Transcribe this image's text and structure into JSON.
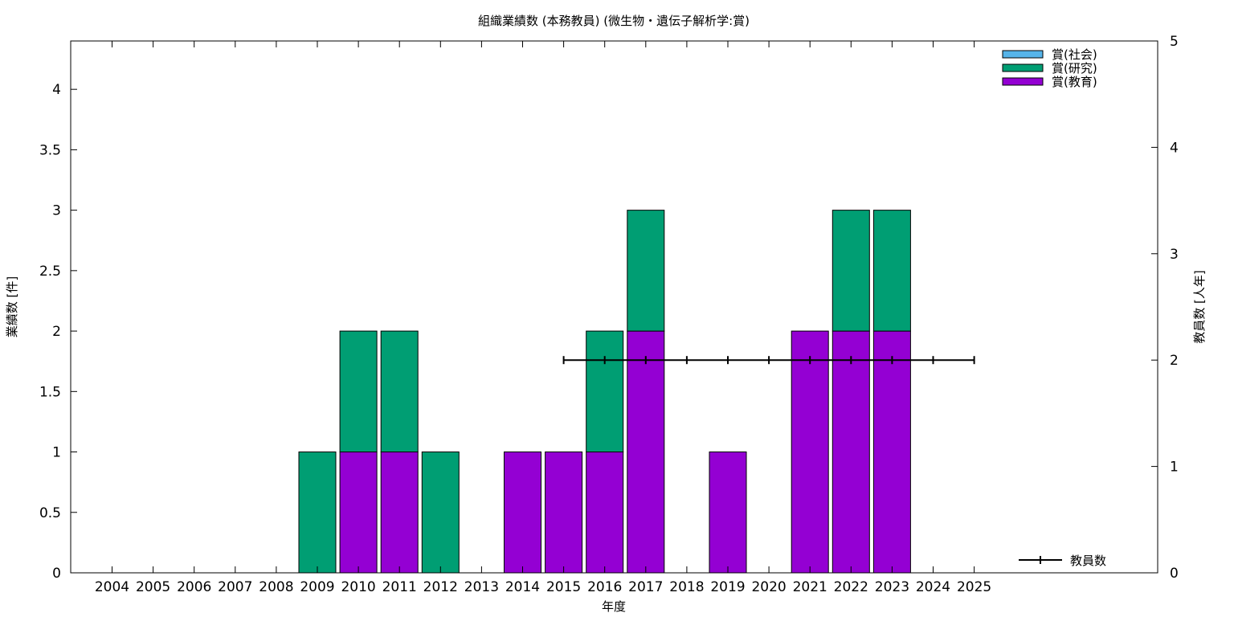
{
  "chart_data": {
    "type": "bar",
    "title": "組織業績数 (本務教員) (微生物・遺伝子解析学:賞)",
    "xlabel": "年度",
    "ylabel": "業績数 [件]",
    "y2label": "教員数 [人年]",
    "categories": [
      "2004",
      "2005",
      "2006",
      "2007",
      "2008",
      "2009",
      "2010",
      "2011",
      "2012",
      "2013",
      "2014",
      "2015",
      "2016",
      "2017",
      "2018",
      "2019",
      "2020",
      "2021",
      "2022",
      "2023",
      "2024",
      "2025"
    ],
    "ylim": [
      0,
      4.4
    ],
    "yticks": [
      "0",
      "0.5",
      "1",
      "1.5",
      "2",
      "2.5",
      "3",
      "3.5",
      "4"
    ],
    "y2lim": [
      0,
      5
    ],
    "y2ticks": [
      "0",
      "1",
      "2",
      "3",
      "4",
      "5"
    ],
    "stacked": true,
    "series": [
      {
        "name": "賞(教育)",
        "color": "#9400d3",
        "values": [
          0,
          0,
          0,
          0,
          0,
          0,
          1,
          1,
          0,
          0,
          1,
          1,
          1,
          2,
          0,
          1,
          0,
          2,
          2,
          2,
          0,
          0
        ]
      },
      {
        "name": "賞(研究)",
        "color": "#009e73",
        "values": [
          0,
          0,
          0,
          0,
          0,
          1,
          1,
          1,
          1,
          0,
          0,
          0,
          1,
          1,
          0,
          0,
          0,
          0,
          1,
          1,
          0,
          0
        ]
      },
      {
        "name": "賞(社会)",
        "color": "#56b4e9",
        "values": [
          0,
          0,
          0,
          0,
          0,
          0,
          0,
          0,
          0,
          0,
          0,
          0,
          0,
          0,
          0,
          0,
          0,
          0,
          0,
          0,
          0,
          0
        ]
      }
    ],
    "legend_order": [
      "賞(社会)",
      "賞(研究)",
      "賞(教育)"
    ],
    "legend_position": "top-right",
    "line_series": {
      "name": "教員数",
      "axis": "y2",
      "color": "#000000",
      "x": [
        "2015",
        "2016",
        "2017",
        "2018",
        "2019",
        "2020",
        "2021",
        "2022",
        "2023",
        "2024",
        "2025"
      ],
      "values": [
        2,
        2,
        2,
        2,
        2,
        2,
        2,
        2,
        2,
        2,
        2
      ],
      "legend_position": "bottom-right"
    }
  }
}
